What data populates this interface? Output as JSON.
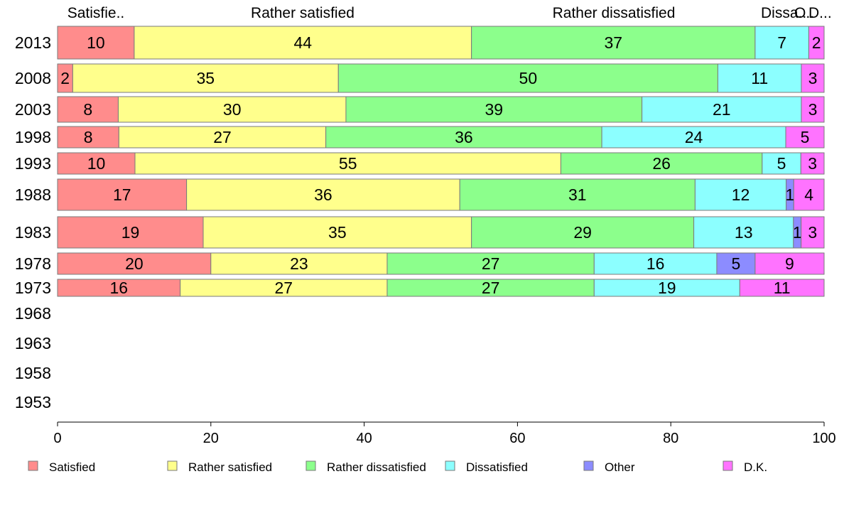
{
  "chart_data": {
    "type": "bar",
    "orientation": "horizontal",
    "stacked": true,
    "categories": [
      "2013",
      "2008",
      "2003",
      "1998",
      "1993",
      "1988",
      "1983",
      "1978",
      "1973",
      "1968",
      "1963",
      "1958",
      "1953"
    ],
    "series": [
      {
        "name": "Satisfied",
        "color": "#ff8c8c",
        "values": [
          10,
          2,
          8,
          8,
          10,
          17,
          19,
          20,
          16,
          null,
          null,
          null,
          null
        ]
      },
      {
        "name": "Rather satisfied",
        "color": "#ffff8c",
        "values": [
          44,
          35,
          30,
          27,
          55,
          36,
          35,
          23,
          27,
          null,
          null,
          null,
          null
        ]
      },
      {
        "name": "Rather dissatisfied",
        "color": "#8cff8c",
        "values": [
          37,
          50,
          39,
          36,
          26,
          31,
          29,
          27,
          27,
          null,
          null,
          null,
          null
        ]
      },
      {
        "name": "Dissatisfied",
        "color": "#8cffff",
        "values": [
          7,
          11,
          21,
          24,
          5,
          12,
          13,
          16,
          19,
          null,
          null,
          null,
          null
        ]
      },
      {
        "name": "Other",
        "color": "#8c8cff",
        "values": [
          0,
          0,
          0,
          0,
          0,
          1,
          1,
          5,
          0,
          null,
          null,
          null,
          null
        ]
      },
      {
        "name": "D.K.",
        "color": "#ff73ff",
        "values": [
          2,
          3,
          3,
          5,
          3,
          4,
          3,
          9,
          11,
          null,
          null,
          null,
          null
        ]
      }
    ],
    "top_labels": [
      "Satisfie..",
      "Rather satisfied",
      "Rather dissatisfied",
      "Dissa..",
      "O..",
      "D..."
    ],
    "xlim": [
      0,
      100
    ],
    "xticks": [
      "0",
      "20",
      "40",
      "60",
      "80",
      "100"
    ],
    "grid": false,
    "legend_position": "bottom"
  }
}
